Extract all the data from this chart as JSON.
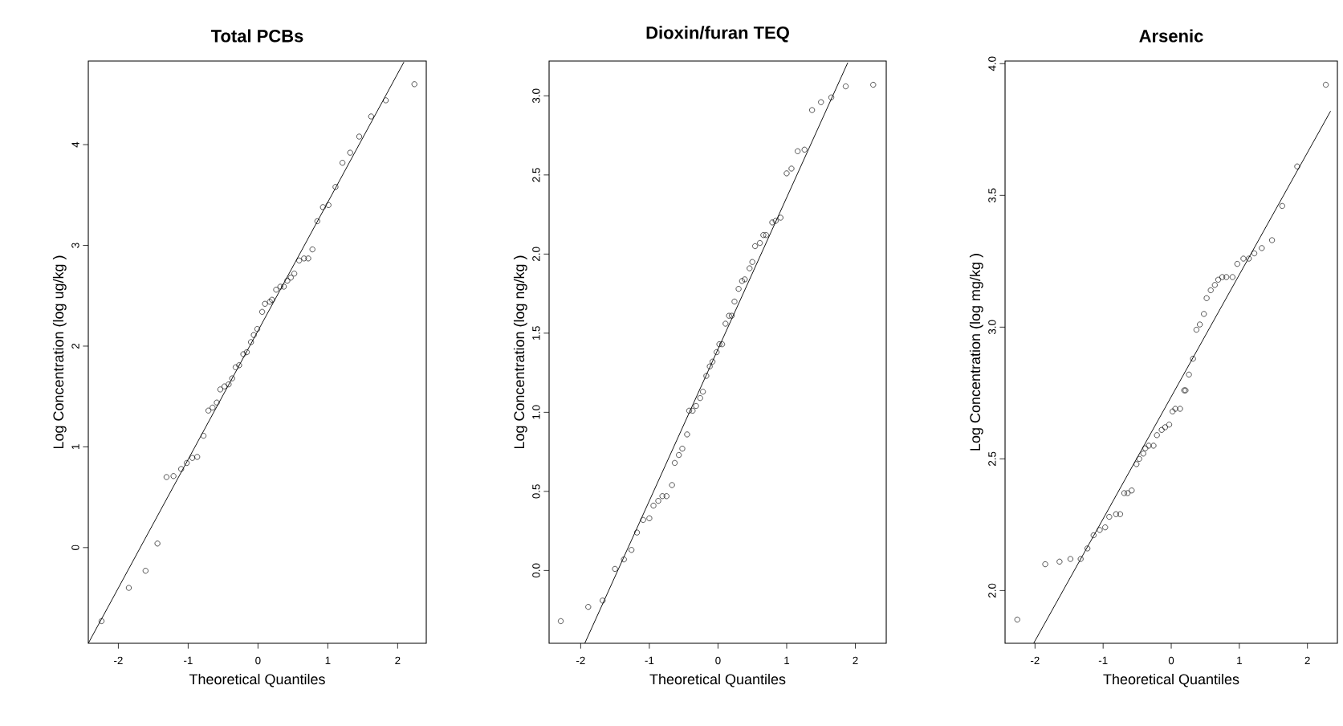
{
  "chart_data": [
    {
      "type": "scatter",
      "title": "Total PCBs",
      "xlabel": "Theoretical Quantiles",
      "ylabel": "Log Concentration (log  ug/kg )",
      "grid": false,
      "xlim": [
        -2.43,
        2.41
      ],
      "ylim": [
        -0.95,
        4.83
      ],
      "xticks": [
        -2,
        -1,
        0,
        1,
        2
      ],
      "yticks": [
        0,
        1,
        2,
        3,
        4
      ],
      "series": [
        {
          "type": "scatter",
          "marker": "circle",
          "color": "#000000",
          "x": [
            -2.24,
            -1.85,
            -1.61,
            -1.44,
            -1.31,
            -1.21,
            -1.1,
            -1.02,
            -0.94,
            -0.87,
            -0.78,
            -0.71,
            -0.65,
            -0.59,
            -0.54,
            -0.48,
            -0.42,
            -0.37,
            -0.32,
            -0.27,
            -0.21,
            -0.16,
            -0.1,
            -0.06,
            -0.01,
            0.06,
            0.1,
            0.17,
            0.2,
            0.26,
            0.32,
            0.37,
            0.42,
            0.47,
            0.52,
            0.59,
            0.66,
            0.72,
            0.78,
            0.85,
            0.93,
            1.01,
            1.11,
            1.21,
            1.32,
            1.45,
            1.62,
            1.83,
            2.24
          ],
          "values": [
            -0.73,
            -0.4,
            -0.23,
            0.04,
            0.7,
            0.71,
            0.78,
            0.84,
            0.89,
            0.9,
            1.11,
            1.36,
            1.39,
            1.44,
            1.57,
            1.6,
            1.62,
            1.68,
            1.79,
            1.81,
            1.92,
            1.94,
            2.04,
            2.11,
            2.17,
            2.34,
            2.42,
            2.44,
            2.46,
            2.56,
            2.59,
            2.59,
            2.65,
            2.68,
            2.72,
            2.85,
            2.87,
            2.87,
            2.96,
            3.24,
            3.38,
            3.4,
            3.58,
            3.82,
            3.92,
            4.08,
            4.28,
            4.44,
            4.6
          ]
        },
        {
          "type": "line",
          "color": "#000000",
          "x": [
            -2.43,
            2.09
          ],
          "values": [
            -0.95,
            4.82
          ]
        }
      ]
    },
    {
      "type": "scatter",
      "title": "Dioxin/furan TEQ",
      "xlabel": "Theoretical Quantiles",
      "ylabel": "Log Concentration (log  ng/kg )",
      "grid": false,
      "xlim": [
        -2.46,
        2.45
      ],
      "ylim": [
        -0.46,
        3.22
      ],
      "xticks": [
        -2,
        -1,
        0,
        1,
        2
      ],
      "yticks": [
        {
          "value": 0,
          "label": "0.0"
        },
        {
          "value": 0.5,
          "label": "0.5"
        },
        {
          "value": 1,
          "label": "1.0"
        },
        {
          "value": 1.5,
          "label": "1.5"
        },
        {
          "value": 2,
          "label": "2.0"
        },
        {
          "value": 2.5,
          "label": "2.5"
        },
        {
          "value": 3,
          "label": "3.0"
        }
      ],
      "series": [
        {
          "type": "scatter",
          "marker": "circle",
          "color": "#000000",
          "x": [
            -2.29,
            -1.89,
            -1.68,
            -1.5,
            -1.37,
            -1.26,
            -1.18,
            -1.09,
            -1.0,
            -0.94,
            -0.87,
            -0.81,
            -0.75,
            -0.67,
            -0.63,
            -0.57,
            -0.52,
            -0.45,
            -0.42,
            -0.37,
            -0.32,
            -0.26,
            -0.22,
            -0.17,
            -0.12,
            -0.08,
            -0.02,
            0.02,
            0.06,
            0.11,
            0.16,
            0.2,
            0.24,
            0.3,
            0.35,
            0.39,
            0.46,
            0.5,
            0.54,
            0.61,
            0.66,
            0.7,
            0.79,
            0.84,
            0.91,
            1.0,
            1.07,
            1.16,
            1.26,
            1.37,
            1.5,
            1.65,
            1.86,
            2.26
          ],
          "values": [
            -0.32,
            -0.23,
            -0.19,
            0.01,
            0.07,
            0.13,
            0.24,
            0.32,
            0.33,
            0.41,
            0.44,
            0.47,
            0.47,
            0.54,
            0.68,
            0.73,
            0.77,
            0.86,
            1.01,
            1.01,
            1.04,
            1.09,
            1.13,
            1.23,
            1.29,
            1.32,
            1.38,
            1.43,
            1.43,
            1.56,
            1.61,
            1.61,
            1.7,
            1.78,
            1.83,
            1.84,
            1.91,
            1.95,
            2.05,
            2.07,
            2.12,
            2.12,
            2.2,
            2.21,
            2.23,
            2.51,
            2.54,
            2.65,
            2.66,
            2.91,
            2.96,
            2.99,
            3.06,
            3.07
          ]
        },
        {
          "type": "line",
          "color": "#000000",
          "x": [
            -1.94,
            1.89
          ],
          "values": [
            -0.46,
            3.21
          ]
        }
      ]
    },
    {
      "type": "scatter",
      "title": "Arsenic",
      "xlabel": "Theoretical Quantiles",
      "ylabel": "Log Concentration (log  mg/kg )",
      "grid": false,
      "xlim": [
        -2.44,
        2.44
      ],
      "ylim": [
        1.8,
        4.01
      ],
      "xticks": [
        -2,
        -1,
        0,
        1,
        2
      ],
      "yticks": [
        {
          "value": 2,
          "label": "2.0"
        },
        {
          "value": 2.5,
          "label": "2.5"
        },
        {
          "value": 3,
          "label": "3.0"
        },
        {
          "value": 3.5,
          "label": "3.5"
        },
        {
          "value": 4,
          "label": "4.0"
        }
      ],
      "series": [
        {
          "type": "scatter",
          "marker": "circle",
          "color": "#000000",
          "x": [
            -2.26,
            -1.85,
            -1.64,
            -1.48,
            -1.33,
            -1.23,
            -1.14,
            -1.05,
            -0.97,
            -0.91,
            -0.81,
            -0.75,
            -0.69,
            -0.64,
            -0.58,
            -0.51,
            -0.47,
            -0.41,
            -0.38,
            -0.33,
            -0.26,
            -0.21,
            -0.14,
            -0.09,
            -0.03,
            0.02,
            0.06,
            0.13,
            0.19,
            0.21,
            0.26,
            0.32,
            0.37,
            0.42,
            0.48,
            0.52,
            0.58,
            0.64,
            0.69,
            0.75,
            0.81,
            0.9,
            0.97,
            1.06,
            1.14,
            1.22,
            1.33,
            1.48,
            1.63,
            1.85,
            2.27
          ],
          "values": [
            1.89,
            2.1,
            2.11,
            2.12,
            2.12,
            2.16,
            2.21,
            2.23,
            2.24,
            2.28,
            2.29,
            2.29,
            2.37,
            2.37,
            2.38,
            2.48,
            2.5,
            2.52,
            2.54,
            2.55,
            2.55,
            2.59,
            2.61,
            2.62,
            2.63,
            2.68,
            2.69,
            2.69,
            2.76,
            2.76,
            2.82,
            2.88,
            2.99,
            3.01,
            3.05,
            3.11,
            3.14,
            3.16,
            3.18,
            3.19,
            3.19,
            3.19,
            3.24,
            3.26,
            3.26,
            3.28,
            3.3,
            3.33,
            3.46,
            3.61,
            3.92
          ]
        },
        {
          "type": "line",
          "color": "#000000",
          "x": [
            -2.02,
            2.34
          ],
          "values": [
            1.8,
            3.82
          ]
        }
      ]
    }
  ]
}
